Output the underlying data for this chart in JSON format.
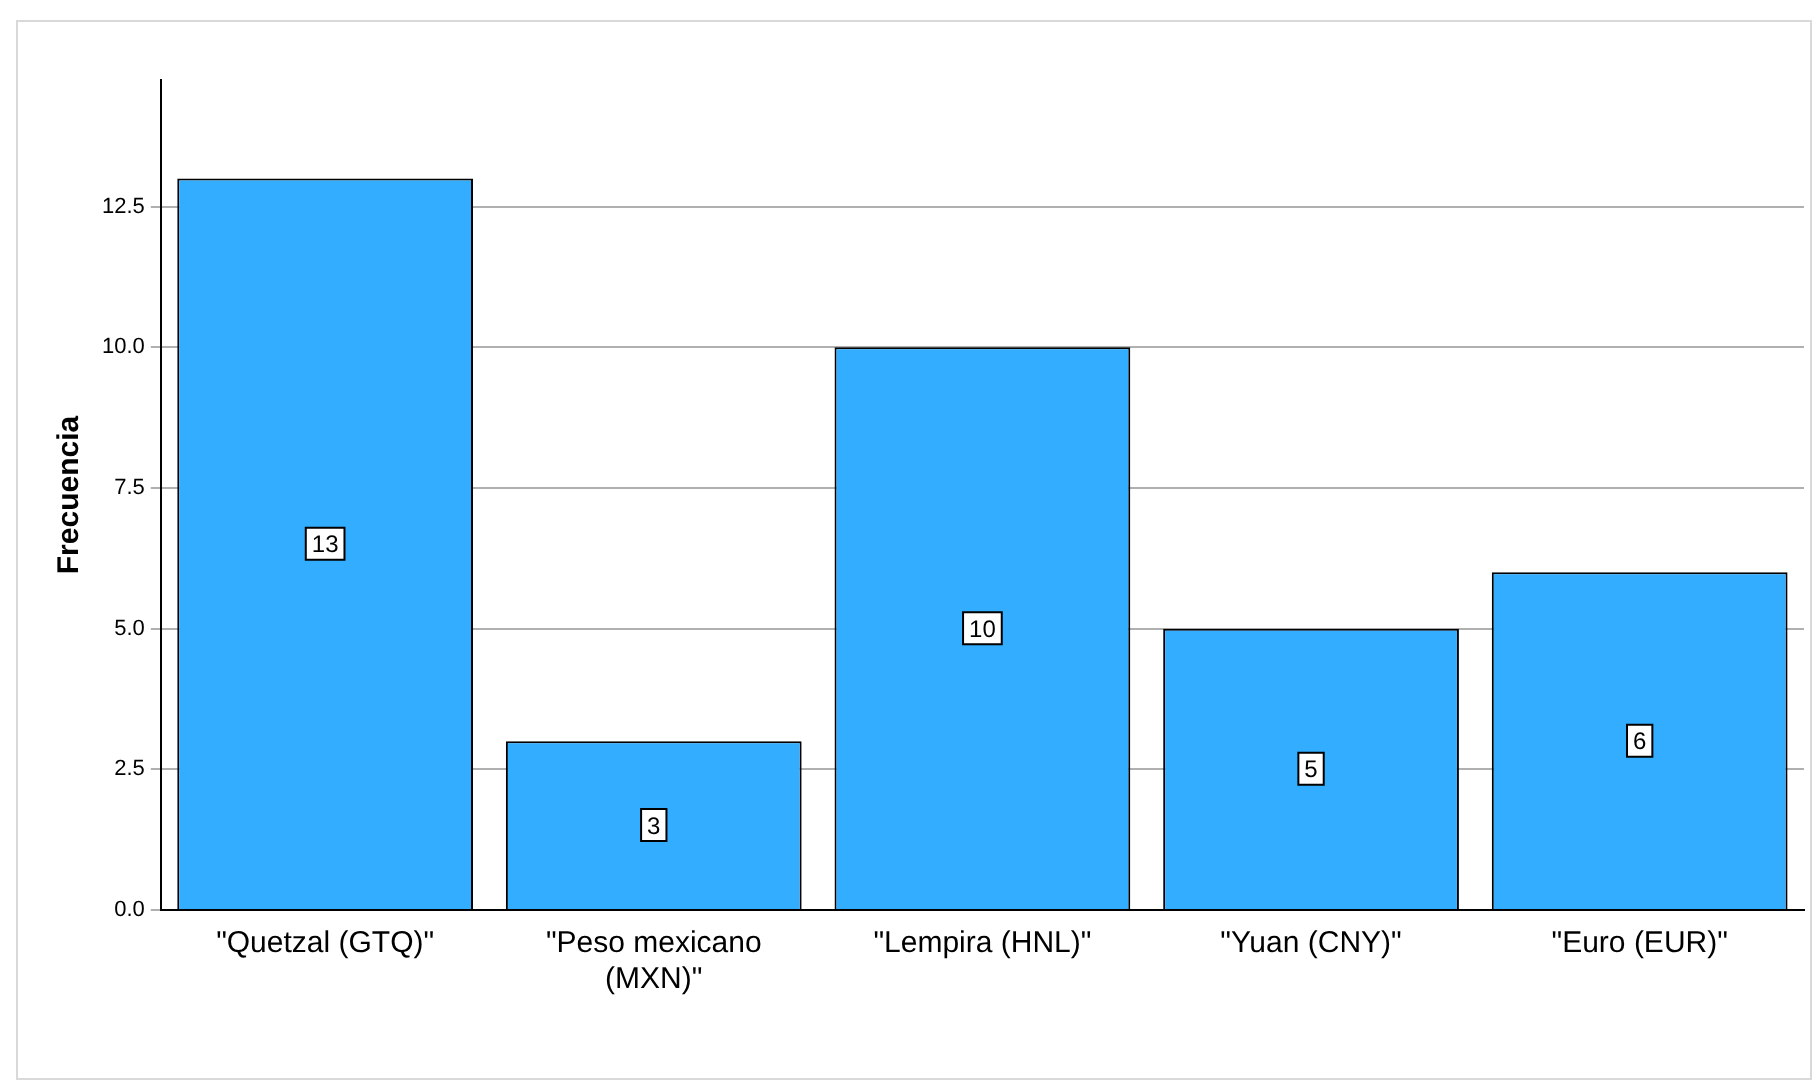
{
  "chart_data": {
    "type": "bar",
    "ylabel": "Frecuencia",
    "categories": [
      "\"Quetzal (GTQ)\"",
      "\"Peso mexicano (MXN)\"",
      "\"Lempira (HNL)\"",
      "\"Yuan (CNY)\"",
      "\"Euro (EUR)\""
    ],
    "values": [
      13,
      3,
      10,
      5,
      6
    ],
    "color": "#33adff",
    "ylim": [
      0,
      14.75
    ],
    "yticks": [
      {
        "value": 0,
        "label": "0.0"
      },
      {
        "value": 2.5,
        "label": "2.5"
      },
      {
        "value": 5,
        "label": "5.0"
      },
      {
        "value": 7.5,
        "label": "7.5"
      },
      {
        "value": 10,
        "label": "10.0"
      },
      {
        "value": 12.5,
        "label": "12.5"
      }
    ],
    "grid": "y",
    "data_labels": true,
    "legend": false
  }
}
